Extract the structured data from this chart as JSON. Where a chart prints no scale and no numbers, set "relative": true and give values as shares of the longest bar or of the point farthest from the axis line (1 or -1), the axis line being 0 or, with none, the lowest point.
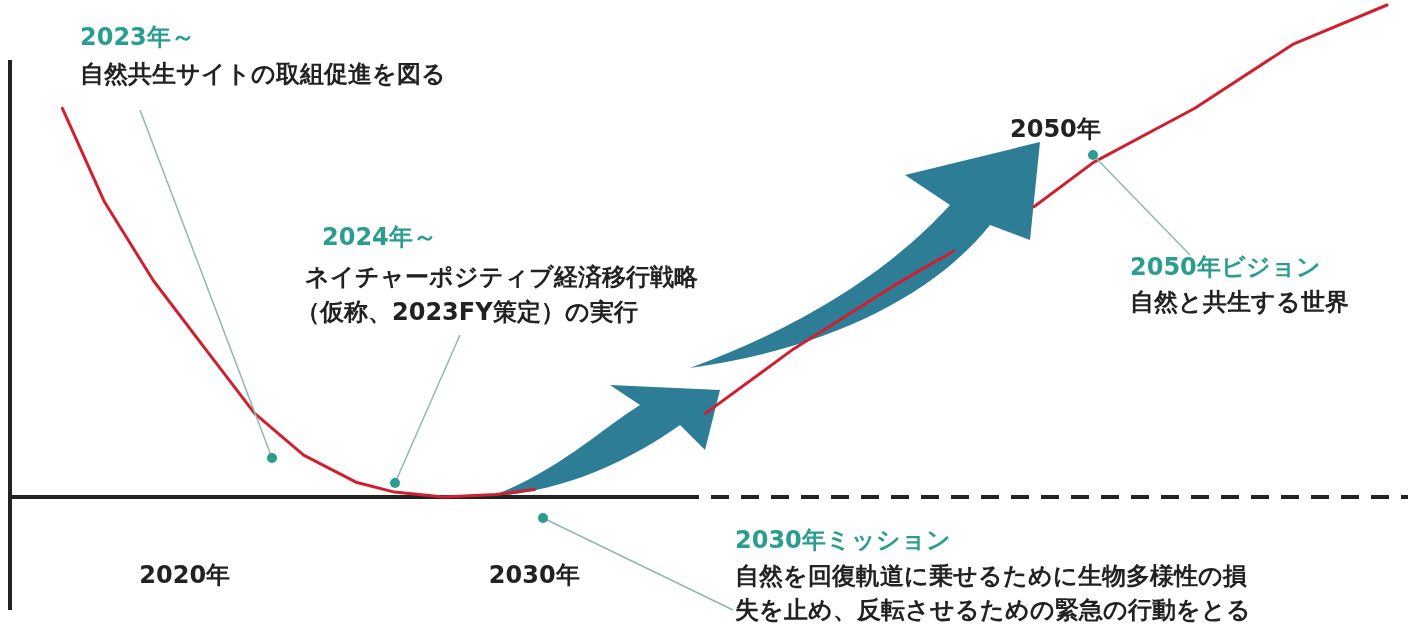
{
  "chart_data": {
    "type": "line",
    "relative": true,
    "xlim": [
      2015,
      2055
    ],
    "xticks": [
      {
        "value": 2020,
        "label": "2020年"
      },
      {
        "value": 2030,
        "label": "2030年"
      }
    ],
    "series": [
      {
        "color": "#d0202f",
        "x": [
          2016.5,
          2017.7,
          2019.1,
          2020.6,
          2022.0,
          2023.4,
          2024.9,
          2026.0,
          2027.4,
          2028.9,
          2030.0
        ],
        "values": [
          0.79,
          0.6,
          0.44,
          0.3,
          0.17,
          0.085,
          0.03,
          0.01,
          0,
          0.005,
          0.015
        ]
      },
      {
        "color": "#d0202f",
        "x": [
          2034.9,
          2037.4,
          2040.3,
          2042.0
        ],
        "values": [
          0.17,
          0.3,
          0.43,
          0.5
        ]
      },
      {
        "color": "#d0202f",
        "x": [
          2044.3,
          2046.0,
          2048.9,
          2051.7,
          2054.4
        ],
        "values": [
          0.59,
          0.68,
          0.79,
          0.92,
          1.0
        ]
      }
    ],
    "annotations": [
      "2023年～",
      "自然共生サイトの取組促進を図る",
      "2024年～",
      "ネイチャーポジティブ経済移行戦略",
      "（仮称、2023FY策定）の実行",
      "2050年ビジョン",
      "自然と共生する世界",
      "2030年ミッション",
      "自然を回復軌道に乗せるために生物多様性の損",
      "失を止め、反転させるための緊急の行動をとる",
      "2050年"
    ]
  }
}
